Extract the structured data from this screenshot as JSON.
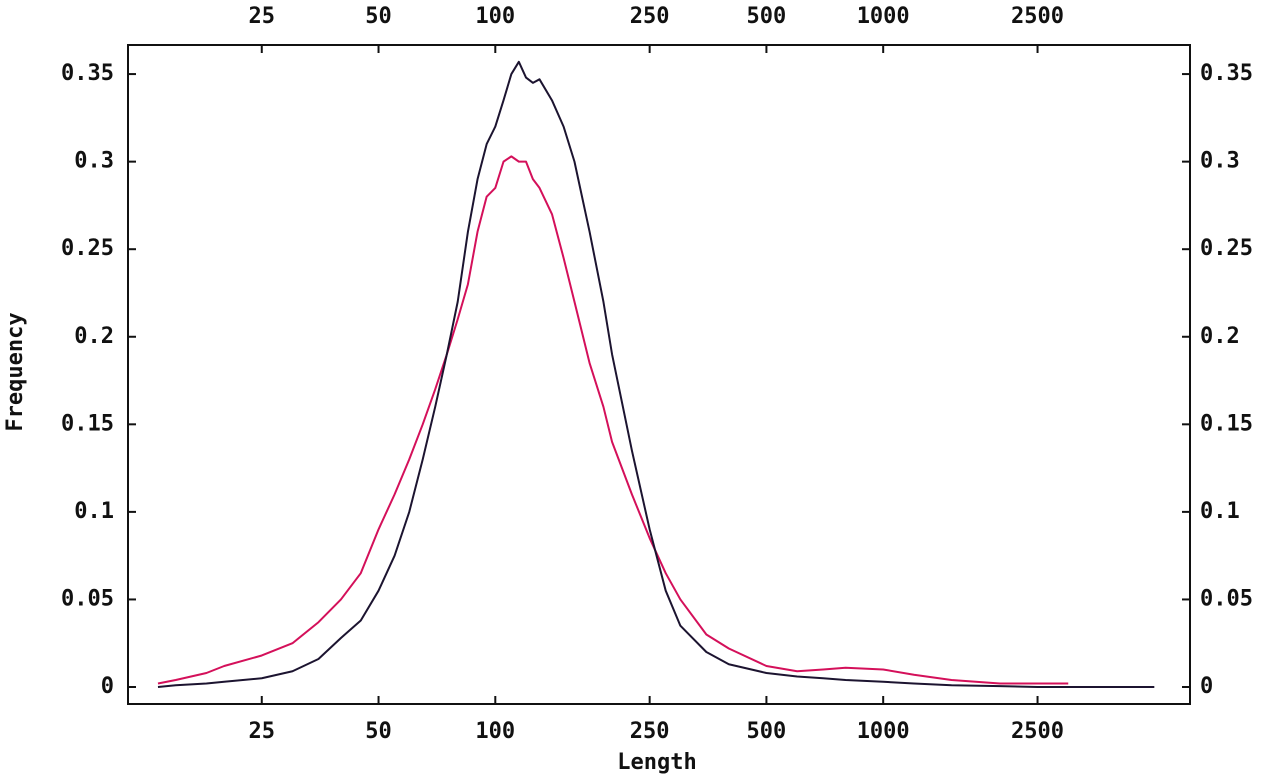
{
  "chart_data": {
    "type": "line",
    "x_label": "Length",
    "y_label": "Frequency",
    "x_scale": "log",
    "x": [
      13.5,
      15,
      18,
      20,
      25,
      30,
      35,
      40,
      45,
      50,
      55,
      60,
      65,
      70,
      75,
      80,
      85,
      90,
      95,
      100,
      105,
      110,
      115,
      120,
      125,
      130,
      140,
      150,
      160,
      175,
      190,
      200,
      225,
      250,
      275,
      300,
      350,
      400,
      500,
      600,
      700,
      800,
      1000,
      1200,
      1500,
      2000,
      2500,
      3000,
      4000,
      5000
    ],
    "series": [
      {
        "color": "#1c1430",
        "values": [
          0,
          0.001,
          0.002,
          0.003,
          0.005,
          0.009,
          0.016,
          0.028,
          0.038,
          0.055,
          0.075,
          0.1,
          0.13,
          0.16,
          0.19,
          0.22,
          0.26,
          0.29,
          0.31,
          0.32,
          0.335,
          0.35,
          0.357,
          0.348,
          0.345,
          0.347,
          0.335,
          0.32,
          0.3,
          0.26,
          0.22,
          0.19,
          0.135,
          0.09,
          0.055,
          0.035,
          0.02,
          0.013,
          0.008,
          0.006,
          0.005,
          0.004,
          0.003,
          0.002,
          0.001,
          0.0005,
          0,
          0,
          0,
          0
        ]
      },
      {
        "color": "#d4105a",
        "values": [
          0.002,
          0.004,
          0.008,
          0.012,
          0.018,
          0.025,
          0.037,
          0.05,
          0.065,
          0.09,
          0.11,
          0.13,
          0.15,
          0.17,
          0.19,
          0.21,
          0.23,
          0.26,
          0.28,
          0.285,
          0.3,
          0.303,
          0.3,
          0.3,
          0.29,
          0.285,
          0.27,
          0.245,
          0.22,
          0.185,
          0.16,
          0.14,
          0.11,
          0.085,
          0.065,
          0.05,
          0.03,
          0.022,
          0.012,
          0.009,
          0.01,
          0.011,
          0.01,
          0.007,
          0.004,
          0.002,
          0.002,
          0.002,
          null,
          null
        ]
      }
    ],
    "xlim": [
      11.3,
      6180
    ],
    "xticks": [
      25,
      50,
      100,
      250,
      500,
      1000,
      2500
    ],
    "ylim": [
      -0.0097,
      0.3666
    ],
    "yticks": [
      0,
      0.05,
      0.1,
      0.15,
      0.2,
      0.25,
      0.3,
      0.35
    ]
  }
}
